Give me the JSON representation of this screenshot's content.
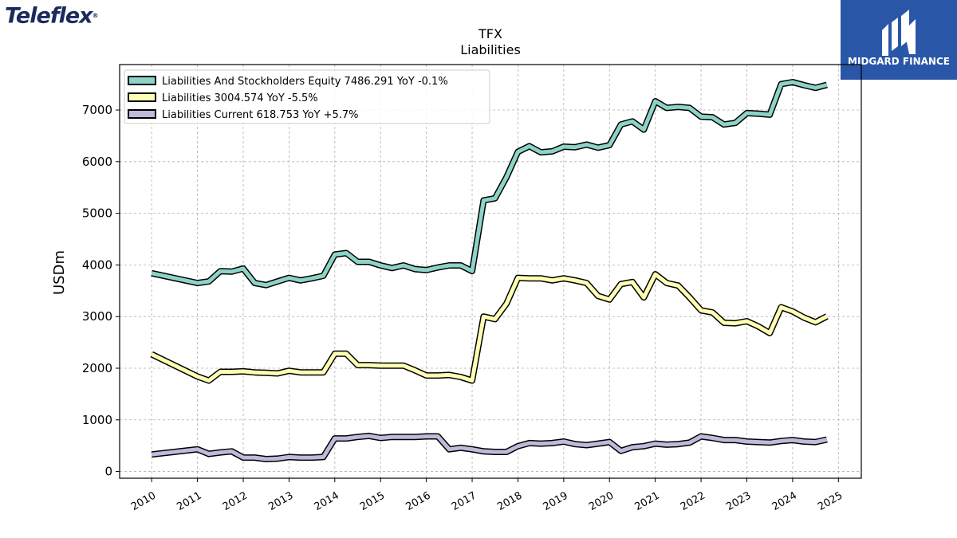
{
  "logos": {
    "left_text": "Teleflex",
    "right_text": "MIDGARD FINANCE"
  },
  "colors": {
    "series": [
      "#8dd3c7",
      "#ffffb3",
      "#bebada"
    ],
    "brand_right_bg": "#2a56a8",
    "brand_left_text": "#1b2a5c"
  },
  "chart_data": {
    "type": "line",
    "title": "TFX",
    "subtitle": "Liabilities",
    "xlabel": "",
    "ylabel": "USDm",
    "xlim": [
      2009.3,
      2025.5
    ],
    "ylim": [
      -130,
      7880
    ],
    "grid": true,
    "legend_position": "top-left",
    "x_ticks": [
      "2010",
      "2011",
      "2012",
      "2013",
      "2014",
      "2015",
      "2016",
      "2017",
      "2018",
      "2019",
      "2020",
      "2021",
      "2022",
      "2023",
      "2024",
      "2025"
    ],
    "y_ticks": [
      0,
      1000,
      2000,
      3000,
      4000,
      5000,
      6000,
      7000
    ],
    "series": [
      {
        "name": "Liabilities And Stockholders Equity",
        "legend_label": "Liabilities And Stockholders Equity  7486.291 YoY -0.1%",
        "points": [
          [
            2010.0,
            3840
          ],
          [
            2011.0,
            3650
          ],
          [
            2011.25,
            3680
          ],
          [
            2011.5,
            3880
          ],
          [
            2011.75,
            3870
          ],
          [
            2012.0,
            3930
          ],
          [
            2012.25,
            3650
          ],
          [
            2012.5,
            3610
          ],
          [
            2012.75,
            3680
          ],
          [
            2013.0,
            3750
          ],
          [
            2013.25,
            3700
          ],
          [
            2013.5,
            3740
          ],
          [
            2013.75,
            3790
          ],
          [
            2014.0,
            4200
          ],
          [
            2014.25,
            4230
          ],
          [
            2014.5,
            4060
          ],
          [
            2014.75,
            4060
          ],
          [
            2015.0,
            3990
          ],
          [
            2015.25,
            3940
          ],
          [
            2015.5,
            3990
          ],
          [
            2015.75,
            3920
          ],
          [
            2016.0,
            3900
          ],
          [
            2016.25,
            3950
          ],
          [
            2016.5,
            3990
          ],
          [
            2016.75,
            3990
          ],
          [
            2017.0,
            3880
          ],
          [
            2017.25,
            5250
          ],
          [
            2017.5,
            5290
          ],
          [
            2017.75,
            5700
          ],
          [
            2018.0,
            6190
          ],
          [
            2018.25,
            6300
          ],
          [
            2018.5,
            6180
          ],
          [
            2018.75,
            6200
          ],
          [
            2019.0,
            6290
          ],
          [
            2019.25,
            6280
          ],
          [
            2019.5,
            6330
          ],
          [
            2019.75,
            6270
          ],
          [
            2020.0,
            6320
          ],
          [
            2020.25,
            6720
          ],
          [
            2020.5,
            6780
          ],
          [
            2020.75,
            6620
          ],
          [
            2021.0,
            7170
          ],
          [
            2021.25,
            7040
          ],
          [
            2021.5,
            7060
          ],
          [
            2021.75,
            7040
          ],
          [
            2022.0,
            6870
          ],
          [
            2022.25,
            6860
          ],
          [
            2022.5,
            6720
          ],
          [
            2022.75,
            6750
          ],
          [
            2023.0,
            6940
          ],
          [
            2023.25,
            6930
          ],
          [
            2023.5,
            6910
          ],
          [
            2023.75,
            7500
          ],
          [
            2024.0,
            7540
          ],
          [
            2024.25,
            7480
          ],
          [
            2024.5,
            7430
          ],
          [
            2024.75,
            7486
          ]
        ]
      },
      {
        "name": "Liabilities",
        "legend_label": "Liabilities  3004.574 YoY -5.5%",
        "points": [
          [
            2010.0,
            2270
          ],
          [
            2011.0,
            1840
          ],
          [
            2011.25,
            1760
          ],
          [
            2011.5,
            1930
          ],
          [
            2011.75,
            1930
          ],
          [
            2012.0,
            1940
          ],
          [
            2012.25,
            1920
          ],
          [
            2012.5,
            1910
          ],
          [
            2012.75,
            1900
          ],
          [
            2013.0,
            1950
          ],
          [
            2013.25,
            1920
          ],
          [
            2013.5,
            1920
          ],
          [
            2013.75,
            1920
          ],
          [
            2014.0,
            2280
          ],
          [
            2014.25,
            2280
          ],
          [
            2014.5,
            2060
          ],
          [
            2014.75,
            2060
          ],
          [
            2015.0,
            2050
          ],
          [
            2015.25,
            2050
          ],
          [
            2015.5,
            2050
          ],
          [
            2015.75,
            1960
          ],
          [
            2016.0,
            1860
          ],
          [
            2016.25,
            1860
          ],
          [
            2016.5,
            1870
          ],
          [
            2016.75,
            1830
          ],
          [
            2017.0,
            1760
          ],
          [
            2017.25,
            3000
          ],
          [
            2017.5,
            2950
          ],
          [
            2017.75,
            3250
          ],
          [
            2018.0,
            3750
          ],
          [
            2018.25,
            3740
          ],
          [
            2018.5,
            3740
          ],
          [
            2018.75,
            3700
          ],
          [
            2019.0,
            3740
          ],
          [
            2019.25,
            3700
          ],
          [
            2019.5,
            3650
          ],
          [
            2019.75,
            3400
          ],
          [
            2020.0,
            3330
          ],
          [
            2020.25,
            3630
          ],
          [
            2020.5,
            3670
          ],
          [
            2020.75,
            3370
          ],
          [
            2021.0,
            3820
          ],
          [
            2021.25,
            3650
          ],
          [
            2021.5,
            3600
          ],
          [
            2021.75,
            3370
          ],
          [
            2022.0,
            3120
          ],
          [
            2022.25,
            3080
          ],
          [
            2022.5,
            2880
          ],
          [
            2022.75,
            2870
          ],
          [
            2023.0,
            2910
          ],
          [
            2023.25,
            2810
          ],
          [
            2023.5,
            2680
          ],
          [
            2023.75,
            3180
          ],
          [
            2024.0,
            3100
          ],
          [
            2024.25,
            2980
          ],
          [
            2024.5,
            2890
          ],
          [
            2024.75,
            3004
          ]
        ]
      },
      {
        "name": "Liabilities Current",
        "legend_label": "Liabilities Current  618.753 YoY +5.7%",
        "points": [
          [
            2010.0,
            330
          ],
          [
            2011.0,
            430
          ],
          [
            2011.25,
            340
          ],
          [
            2011.5,
            370
          ],
          [
            2011.75,
            390
          ],
          [
            2012.0,
            270
          ],
          [
            2012.25,
            270
          ],
          [
            2012.5,
            240
          ],
          [
            2012.75,
            250
          ],
          [
            2013.0,
            280
          ],
          [
            2013.25,
            270
          ],
          [
            2013.5,
            270
          ],
          [
            2013.75,
            280
          ],
          [
            2014.0,
            640
          ],
          [
            2014.25,
            640
          ],
          [
            2014.5,
            670
          ],
          [
            2014.75,
            690
          ],
          [
            2015.0,
            650
          ],
          [
            2015.25,
            670
          ],
          [
            2015.5,
            670
          ],
          [
            2015.75,
            670
          ],
          [
            2016.0,
            680
          ],
          [
            2016.25,
            680
          ],
          [
            2016.5,
            430
          ],
          [
            2016.75,
            460
          ],
          [
            2017.0,
            430
          ],
          [
            2017.25,
            390
          ],
          [
            2017.5,
            380
          ],
          [
            2017.75,
            380
          ],
          [
            2018.0,
            490
          ],
          [
            2018.25,
            550
          ],
          [
            2018.5,
            540
          ],
          [
            2018.75,
            550
          ],
          [
            2019.0,
            580
          ],
          [
            2019.25,
            530
          ],
          [
            2019.5,
            510
          ],
          [
            2019.75,
            540
          ],
          [
            2020.0,
            570
          ],
          [
            2020.25,
            400
          ],
          [
            2020.5,
            470
          ],
          [
            2020.75,
            490
          ],
          [
            2021.0,
            540
          ],
          [
            2021.25,
            520
          ],
          [
            2021.5,
            530
          ],
          [
            2021.75,
            560
          ],
          [
            2022.0,
            680
          ],
          [
            2022.25,
            650
          ],
          [
            2022.5,
            610
          ],
          [
            2022.75,
            610
          ],
          [
            2023.0,
            580
          ],
          [
            2023.25,
            570
          ],
          [
            2023.5,
            560
          ],
          [
            2023.75,
            590
          ],
          [
            2024.0,
            610
          ],
          [
            2024.25,
            580
          ],
          [
            2024.5,
            570
          ],
          [
            2024.75,
            619
          ]
        ]
      }
    ]
  }
}
